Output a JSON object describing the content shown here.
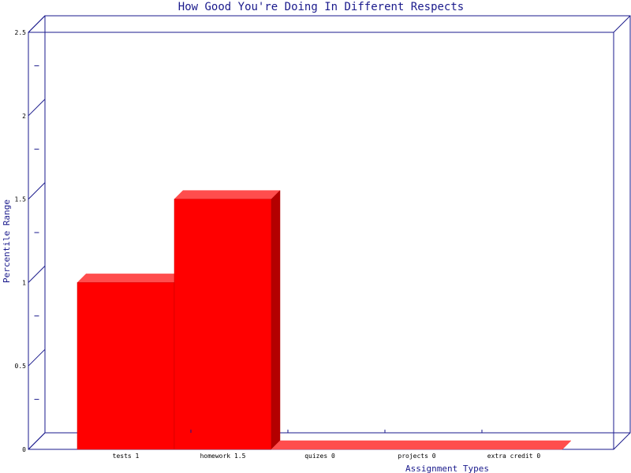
{
  "chart_data": {
    "type": "bar",
    "title": "How Good You're Doing In Different Respects",
    "xlabel": "Assignment Types",
    "ylabel": "Percentile Range",
    "categories": [
      "tests",
      "homework",
      "quizes",
      "projects",
      "extra credit"
    ],
    "category_labels": [
      "tests 1",
      "homework 1.5",
      "quizes 0",
      "projects 0",
      "extra credit 0"
    ],
    "values": [
      1,
      1.5,
      0,
      0,
      0
    ],
    "ylim": [
      0,
      2.5
    ],
    "yticks": [
      0,
      0.5,
      1,
      1.5,
      2,
      2.5
    ],
    "ytick_labels": [
      "0",
      "0.5",
      "1",
      "1.5",
      "2",
      "2.5"
    ],
    "grid": false,
    "colors": {
      "bar_front": "#ff0000",
      "bar_top": "#ff4d4d",
      "bar_side": "#b30000",
      "axis": "#1a1a8c"
    }
  }
}
